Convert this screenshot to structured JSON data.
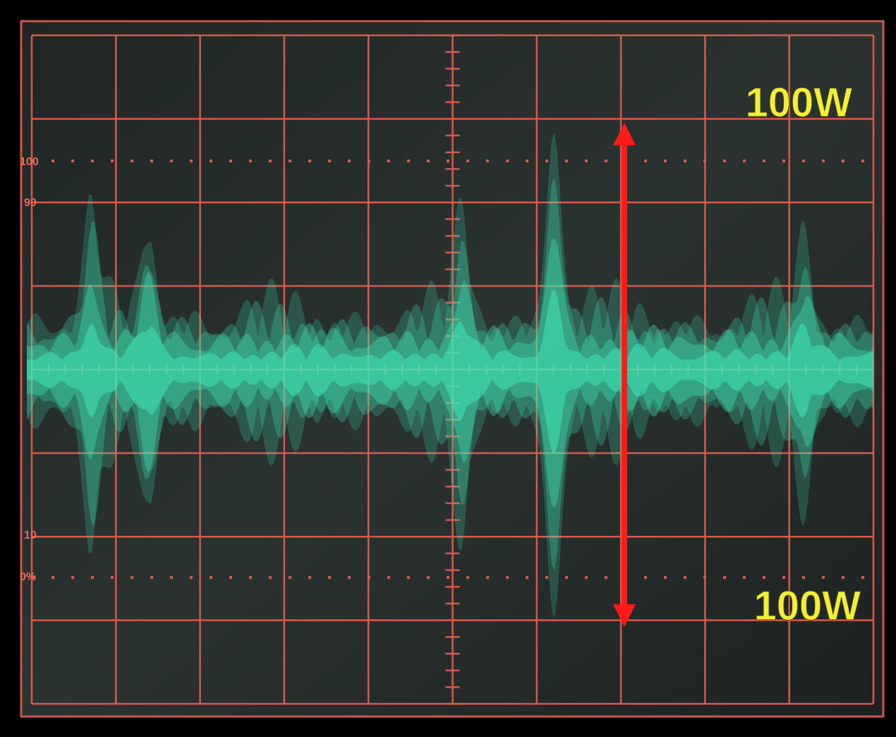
{
  "screen": {
    "power_top": "100W",
    "power_bottom": "100W",
    "scale_labels": [
      "100",
      "90",
      "10",
      "0%"
    ]
  }
}
